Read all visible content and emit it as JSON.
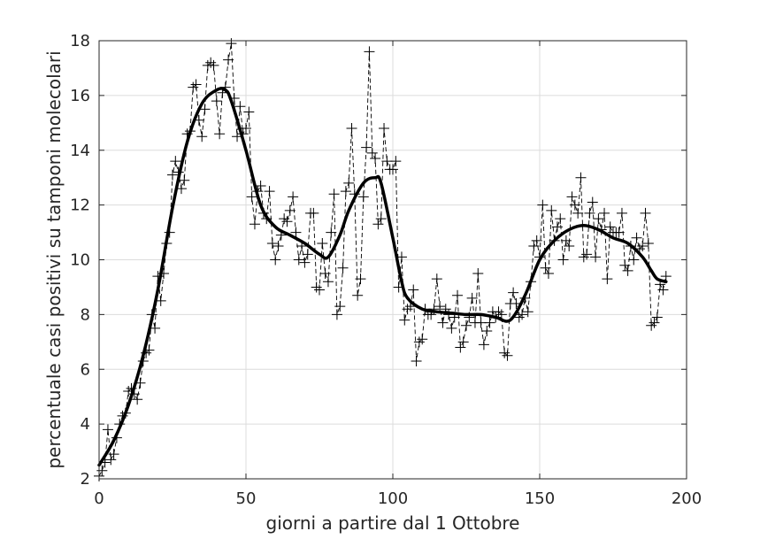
{
  "chart_data": {
    "type": "line",
    "title": "",
    "xlabel": "giorni a partire dal 1 Ottobre",
    "ylabel": "percentuale casi positivi su tamponi molecolari",
    "xlim": [
      0,
      200
    ],
    "ylim": [
      2,
      18
    ],
    "xticks": [
      0,
      50,
      100,
      150,
      200
    ],
    "yticks": [
      2,
      4,
      6,
      8,
      10,
      12,
      14,
      16,
      18
    ],
    "x_tick_labels": [
      "0",
      "50",
      "100",
      "150",
      "200"
    ],
    "y_tick_labels": [
      "2",
      "4",
      "6",
      "8",
      "10",
      "12",
      "14",
      "16",
      "18"
    ],
    "grid": true,
    "colors": {
      "axis": "#262626",
      "grid": "#dcdcdc",
      "series": "#000000"
    },
    "series": [
      {
        "style": "dashed-with-plus-markers",
        "x": [
          0,
          1,
          2,
          3,
          4,
          5,
          6,
          7,
          8,
          9,
          10,
          11,
          12,
          13,
          14,
          15,
          16,
          17,
          18,
          19,
          20,
          21,
          22,
          23,
          24,
          25,
          26,
          27,
          28,
          29,
          30,
          31,
          32,
          33,
          34,
          35,
          36,
          37,
          38,
          39,
          40,
          41,
          42,
          43,
          44,
          45,
          46,
          47,
          48,
          49,
          50,
          51,
          52,
          53,
          54,
          55,
          56,
          57,
          58,
          59,
          60,
          61,
          62,
          63,
          64,
          65,
          66,
          67,
          68,
          69,
          70,
          71,
          72,
          73,
          74,
          75,
          76,
          77,
          78,
          79,
          80,
          81,
          82,
          83,
          84,
          85,
          86,
          87,
          88,
          89,
          90,
          91,
          92,
          93,
          94,
          95,
          96,
          97,
          98,
          99,
          100,
          101,
          102,
          103,
          104,
          105,
          106,
          107,
          108,
          109,
          110,
          111,
          112,
          113,
          114,
          115,
          116,
          117,
          118,
          119,
          120,
          121,
          122,
          123,
          124,
          125,
          126,
          127,
          128,
          129,
          130,
          131,
          132,
          133,
          134,
          135,
          136,
          137,
          138,
          139,
          140,
          141,
          142,
          143,
          144,
          145,
          146,
          147,
          148,
          149,
          150,
          151,
          152,
          153,
          154,
          155,
          156,
          157,
          158,
          159,
          160,
          161,
          162,
          163,
          164,
          165,
          166,
          167,
          168,
          169,
          170,
          171,
          172,
          173,
          174,
          175,
          176,
          177,
          178,
          179,
          180,
          181,
          182,
          183,
          184,
          185,
          186,
          187,
          188,
          189,
          190,
          191,
          192,
          193
        ],
        "y": [
          2.1,
          2.3,
          2.6,
          3.8,
          2.7,
          2.9,
          3.5,
          4.0,
          4.3,
          4.4,
          5.2,
          5.3,
          5.1,
          4.9,
          5.5,
          6.3,
          6.6,
          6.7,
          8.0,
          7.5,
          9.4,
          8.5,
          9.5,
          10.6,
          11.0,
          13.1,
          13.6,
          13.2,
          12.6,
          12.9,
          14.6,
          14.7,
          16.3,
          16.4,
          15.1,
          14.5,
          15.5,
          17.1,
          17.2,
          17.1,
          15.8,
          14.6,
          16.1,
          16.3,
          17.3,
          17.9,
          15.9,
          14.5,
          15.6,
          14.6,
          14.8,
          15.4,
          12.3,
          11.3,
          12.5,
          12.7,
          11.7,
          11.5,
          12.5,
          10.6,
          10.0,
          10.5,
          10.9,
          11.5,
          11.4,
          11.8,
          12.3,
          11.0,
          10.0,
          10.5,
          9.9,
          10.2,
          11.7,
          11.7,
          9.0,
          8.9,
          10.6,
          9.5,
          9.2,
          11.0,
          12.4,
          8.0,
          8.3,
          9.7,
          12.5,
          12.8,
          14.8,
          12.4,
          8.7,
          9.3,
          12.3,
          14.1,
          17.6,
          13.9,
          13.7,
          11.3,
          11.5,
          14.8,
          13.6,
          13.3,
          13.3,
          13.6,
          9.0,
          10.1,
          7.8,
          8.2,
          8.3,
          8.9,
          6.3,
          7.0,
          7.1,
          8.2,
          8.0,
          8.0,
          8.2,
          9.3,
          8.3,
          7.7,
          8.2,
          8.0,
          7.5,
          7.9,
          8.7,
          6.8,
          7.0,
          7.6,
          7.9,
          8.6,
          7.7,
          9.5,
          7.7,
          6.9,
          7.4,
          7.7,
          8.1,
          7.9,
          8.1,
          8.0,
          6.6,
          6.5,
          8.4,
          8.8,
          8.4,
          7.9,
          8.0,
          8.6,
          8.1,
          9.2,
          10.5,
          10.7,
          10.1,
          12.0,
          9.7,
          9.5,
          11.8,
          10.7,
          11.2,
          11.5,
          10.0,
          10.7,
          10.5,
          12.3,
          12.0,
          11.7,
          13.0,
          10.1,
          10.2,
          11.7,
          12.1,
          10.1,
          11.5,
          11.1,
          11.7,
          9.3,
          11.2,
          11.0,
          11.0,
          11.0,
          11.7,
          9.8,
          9.6,
          10.5,
          10.0,
          10.8,
          10.4,
          10.5,
          11.7,
          10.6,
          7.6,
          7.7,
          7.9,
          9.1,
          8.9,
          9.4
        ]
      },
      {
        "style": "solid-thick-smoothed",
        "x": [
          0,
          5,
          10,
          15,
          20,
          25,
          30,
          35,
          40,
          43,
          45,
          50,
          55,
          60,
          65,
          70,
          75,
          78,
          82,
          85,
          90,
          94,
          96,
          100,
          103,
          105,
          110,
          115,
          120,
          125,
          130,
          135,
          140,
          145,
          150,
          155,
          160,
          165,
          170,
          175,
          180,
          185,
          188,
          190,
          193
        ],
        "y": [
          2.5,
          3.4,
          4.7,
          6.5,
          8.9,
          11.9,
          14.3,
          15.7,
          16.2,
          16.2,
          15.8,
          14.0,
          12.0,
          11.2,
          10.9,
          10.6,
          10.2,
          10.1,
          10.9,
          11.8,
          12.8,
          13.0,
          12.8,
          10.8,
          9.2,
          8.6,
          8.2,
          8.1,
          8.05,
          8.0,
          8.0,
          7.9,
          7.8,
          8.7,
          10.0,
          10.7,
          11.1,
          11.25,
          11.1,
          10.8,
          10.6,
          10.1,
          9.6,
          9.3,
          9.2
        ]
      }
    ]
  }
}
